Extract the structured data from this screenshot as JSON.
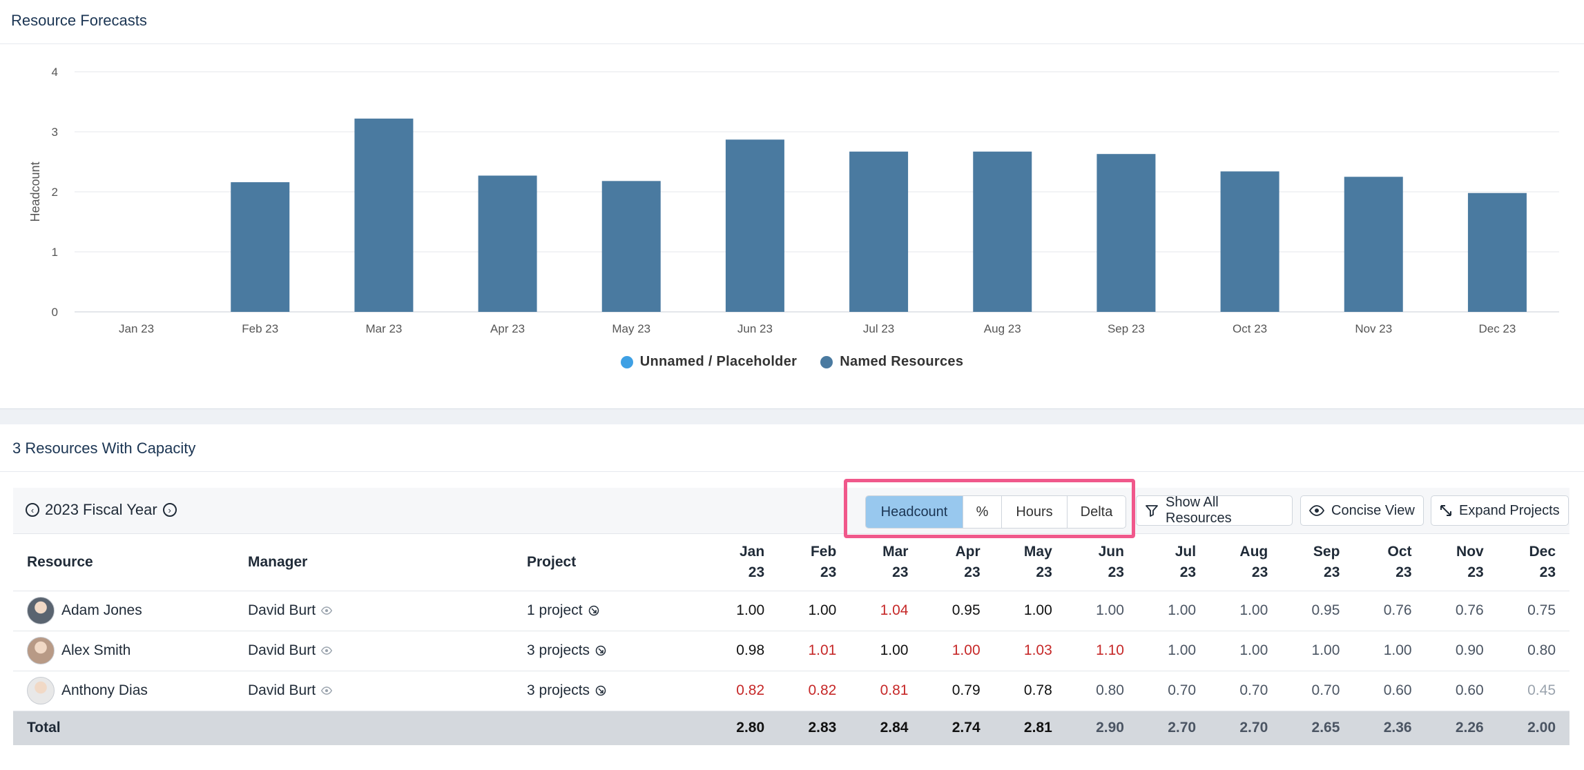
{
  "forecast_panel": {
    "title": "Resource Forecasts"
  },
  "chart_data": {
    "type": "bar",
    "ylabel": "Headcount",
    "ylim": [
      0,
      4
    ],
    "yticks": [
      "0",
      "1",
      "2",
      "3",
      "4"
    ],
    "categories": [
      "Jan 23",
      "Feb 23",
      "Mar 23",
      "Apr 23",
      "May 23",
      "Jun 23",
      "Jul 23",
      "Aug 23",
      "Sep 23",
      "Oct 23",
      "Nov 23",
      "Dec 23"
    ],
    "series": [
      {
        "name": "Unnamed / Placeholder",
        "color": "#3ea0e4",
        "values": [
          0,
          0,
          0,
          0,
          0,
          0,
          0,
          0,
          0,
          0,
          0,
          0
        ]
      },
      {
        "name": "Named Resources",
        "color": "#4a7aa0",
        "values": [
          0,
          2.16,
          3.22,
          2.27,
          2.18,
          2.87,
          2.67,
          2.67,
          2.63,
          2.34,
          2.25,
          1.98
        ]
      }
    ],
    "grid": true,
    "legend_position": "bottom"
  },
  "capacity_panel": {
    "title": "3 Resources With Capacity"
  },
  "toolbar": {
    "fiscal_year": "2023 Fiscal Year",
    "segments": [
      "Headcount",
      "%",
      "Hours",
      "Delta"
    ],
    "active_segment": "Headcount",
    "show_all_label": "Show All Resources",
    "concise_label": "Concise View",
    "expand_label": "Expand Projects"
  },
  "table": {
    "headers": {
      "resource": "Resource",
      "manager": "Manager",
      "project": "Project",
      "months": [
        {
          "m": "Jan",
          "y": "23"
        },
        {
          "m": "Feb",
          "y": "23"
        },
        {
          "m": "Mar",
          "y": "23"
        },
        {
          "m": "Apr",
          "y": "23"
        },
        {
          "m": "May",
          "y": "23"
        },
        {
          "m": "Jun",
          "y": "23"
        },
        {
          "m": "Jul",
          "y": "23"
        },
        {
          "m": "Aug",
          "y": "23"
        },
        {
          "m": "Sep",
          "y": "23"
        },
        {
          "m": "Oct",
          "y": "23"
        },
        {
          "m": "Nov",
          "y": "23"
        },
        {
          "m": "Dec",
          "y": "23"
        }
      ]
    },
    "rows": [
      {
        "name": "Adam Jones",
        "manager": "David Burt",
        "projects": "1 project",
        "avatar_color": "#5a6470",
        "values": [
          "1.00",
          "1.00",
          "1.04",
          "0.95",
          "1.00",
          "1.00",
          "1.00",
          "1.00",
          "0.95",
          "0.76",
          "0.76",
          "0.75"
        ],
        "styles": [
          "strong",
          "strong",
          "red",
          "strong",
          "strong",
          "soft",
          "soft",
          "soft",
          "soft",
          "soft",
          "soft",
          "soft"
        ]
      },
      {
        "name": "Alex Smith",
        "manager": "David Burt",
        "projects": "3 projects",
        "avatar_color": "#b89a86",
        "values": [
          "0.98",
          "1.01",
          "1.00",
          "1.00",
          "1.03",
          "1.10",
          "1.00",
          "1.00",
          "1.00",
          "1.00",
          "0.90",
          "0.80"
        ],
        "styles": [
          "strong",
          "red",
          "strong",
          "red",
          "red",
          "red",
          "soft",
          "soft",
          "soft",
          "soft",
          "soft",
          "soft"
        ]
      },
      {
        "name": "Anthony Dias",
        "manager": "David Burt",
        "projects": "3 projects",
        "avatar_color": "#e8e8e8",
        "values": [
          "0.82",
          "0.82",
          "0.81",
          "0.79",
          "0.78",
          "0.80",
          "0.70",
          "0.70",
          "0.70",
          "0.60",
          "0.60",
          "0.45"
        ],
        "styles": [
          "red",
          "red",
          "red",
          "strong",
          "strong",
          "soft",
          "soft",
          "soft",
          "soft",
          "soft",
          "soft",
          "faint"
        ]
      }
    ],
    "total": {
      "label": "Total",
      "values": [
        "2.80",
        "2.83",
        "2.84",
        "2.74",
        "2.81",
        "2.90",
        "2.70",
        "2.70",
        "2.65",
        "2.36",
        "2.26",
        "2.00"
      ],
      "styles": [
        "strong",
        "strong",
        "strong",
        "strong",
        "strong",
        "soft",
        "soft",
        "soft",
        "soft",
        "soft",
        "soft",
        "soft"
      ]
    }
  }
}
